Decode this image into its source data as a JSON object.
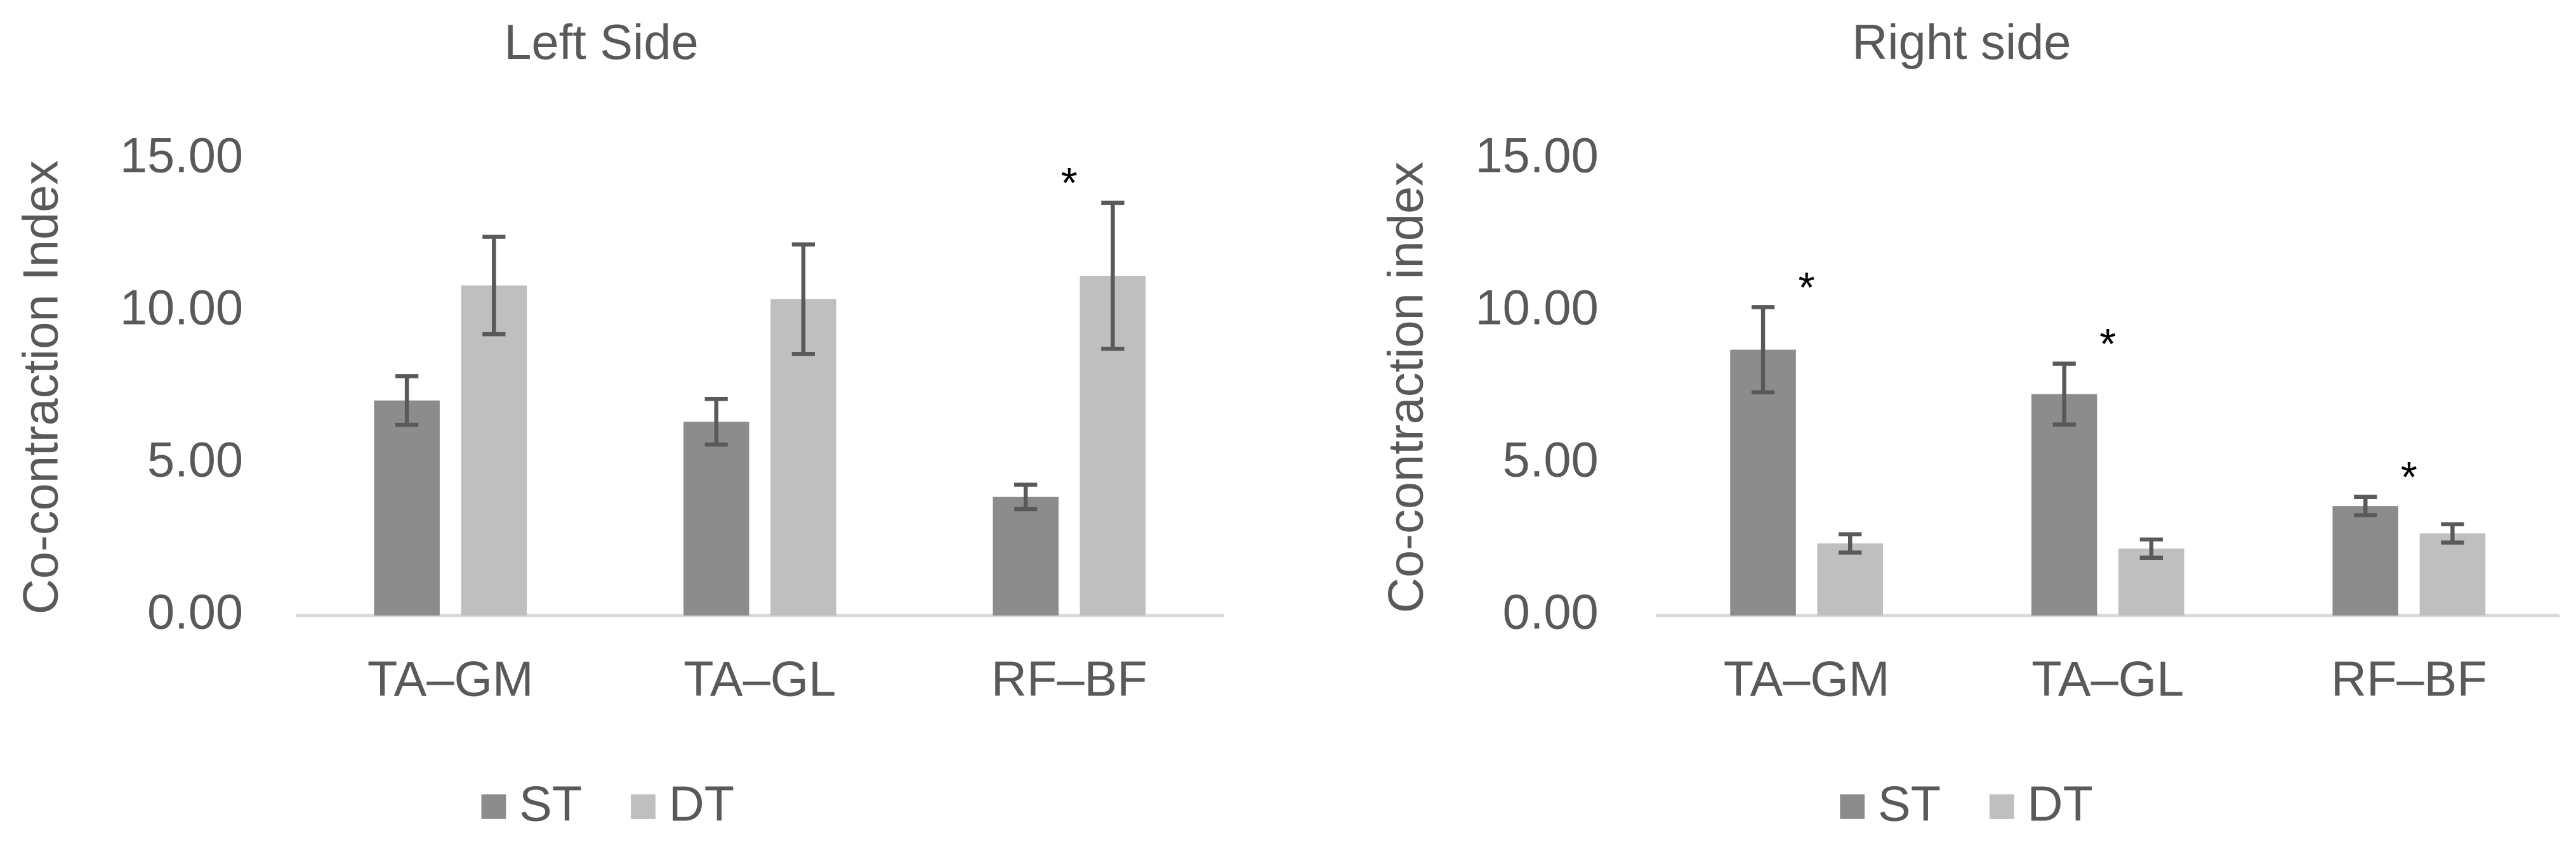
{
  "chart_data": [
    {
      "type": "bar",
      "title": "Left Side",
      "y_label": "Co-contraction Index",
      "categories": [
        "TA–GM",
        "TA–GL",
        "RF–BF"
      ],
      "series": [
        {
          "name": "ST",
          "color": "#8c8c8c",
          "values": [
            7.07,
            6.37,
            3.9
          ],
          "errors": [
            0.8,
            0.75,
            0.4
          ]
        },
        {
          "name": "DT",
          "color": "#bfbfbf",
          "values": [
            10.85,
            10.4,
            11.17
          ],
          "errors": [
            1.6,
            1.8,
            2.4
          ]
        }
      ],
      "ylim": [
        0,
        15
      ],
      "yticks": [
        {
          "value": 0,
          "label": "0.00"
        },
        {
          "value": 5,
          "label": "5.00"
        },
        {
          "value": 10,
          "label": "10.00"
        },
        {
          "value": 15,
          "label": "15.00"
        }
      ],
      "annotations": [
        {
          "text": "*",
          "category": "RF–BF"
        }
      ],
      "legend": "bottom"
    },
    {
      "type": "bar",
      "title": "Right side",
      "y_label": "Co-contraction index",
      "categories": [
        "TA–GM",
        "TA–GL",
        "RF–BF"
      ],
      "series": [
        {
          "name": "ST",
          "color": "#8c8c8c",
          "values": [
            8.74,
            7.28,
            3.6
          ],
          "errors": [
            1.4,
            1.0,
            0.3
          ]
        },
        {
          "name": "DT",
          "color": "#bfbfbf",
          "values": [
            2.37,
            2.2,
            2.7
          ],
          "errors": [
            0.3,
            0.3,
            0.3
          ]
        }
      ],
      "ylim": [
        0,
        15
      ],
      "yticks": [
        {
          "value": 0,
          "label": "0.00"
        },
        {
          "value": 5,
          "label": "5.00"
        },
        {
          "value": 10,
          "label": "10.00"
        },
        {
          "value": 15,
          "label": "15.00"
        }
      ],
      "annotations": [
        {
          "text": "*",
          "category": "TA–GM"
        },
        {
          "text": "*",
          "category": "TA–GL"
        },
        {
          "text": "*",
          "category": "RF–BF"
        }
      ],
      "legend": "bottom"
    }
  ]
}
